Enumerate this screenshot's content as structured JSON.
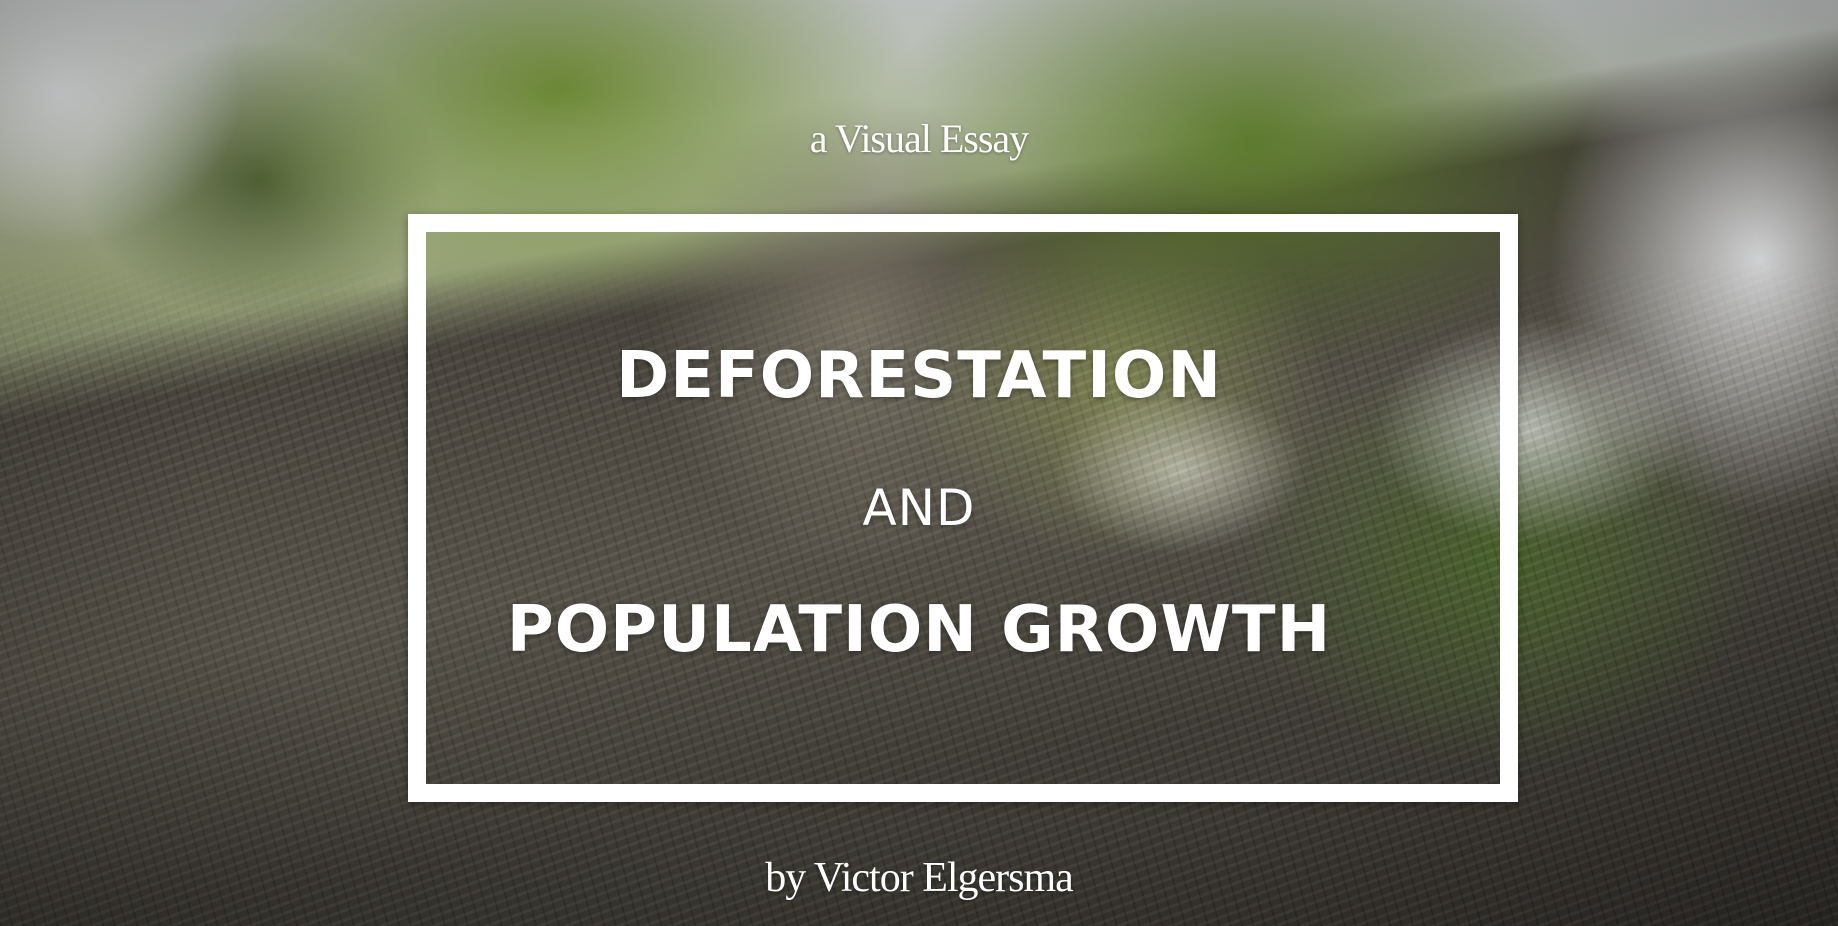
{
  "hero": {
    "kicker": "a Visual Essay",
    "title_line_1": "DEFORESTATION",
    "title_connector": "AND",
    "title_line_2": "POPULATION GROWTH",
    "byline": "by Victor Elgersma"
  },
  "colors": {
    "text": "#ffffff",
    "frame": "#ffffff"
  }
}
